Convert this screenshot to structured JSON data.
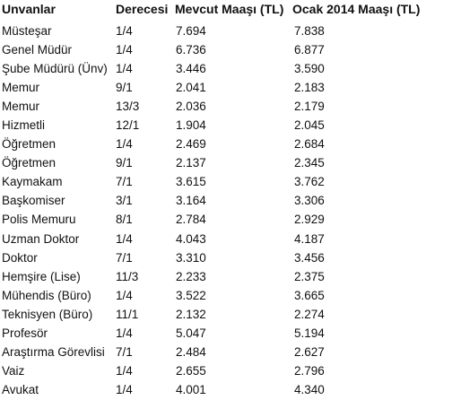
{
  "headers": {
    "title": "Unvanlar",
    "grade": "Derecesi",
    "current": "Mevcut Maaşı (TL)",
    "new": "Ocak 2014 Maaşı (TL)"
  },
  "rows": [
    {
      "title": "Müsteşar",
      "grade": "1/4",
      "current": "7.694",
      "new": "7.838"
    },
    {
      "title": "Genel Müdür",
      "grade": "1/4",
      "current": "6.736",
      "new": "6.877"
    },
    {
      "title": "Şube Müdürü (Ünv)",
      "grade": "1/4",
      "current": "3.446",
      "new": "3.590"
    },
    {
      "title": "Memur",
      "grade": "9/1",
      "current": "2.041",
      "new": "2.183"
    },
    {
      "title": "Memur",
      "grade": "13/3",
      "current": "2.036",
      "new": "2.179"
    },
    {
      "title": "Hizmetli",
      "grade": "12/1",
      "current": "1.904",
      "new": "2.045"
    },
    {
      "title": "Öğretmen",
      "grade": "1/4",
      "current": "2.469",
      "new": "2.684"
    },
    {
      "title": "Öğretmen",
      "grade": "9/1",
      "current": "2.137",
      "new": "2.345"
    },
    {
      "title": "Kaymakam",
      "grade": "7/1",
      "current": "3.615",
      "new": "3.762"
    },
    {
      "title": "Başkomiser",
      "grade": "3/1",
      "current": "3.164",
      "new": "3.306"
    },
    {
      "title": "Polis Memuru",
      "grade": "8/1",
      "current": "2.784",
      "new": "2.929"
    },
    {
      "title": "Uzman Doktor",
      "grade": "1/4",
      "current": "4.043",
      "new": "4.187"
    },
    {
      "title": "Doktor",
      "grade": "7/1",
      "current": "3.310",
      "new": "3.456"
    },
    {
      "title": "Hemşire (Lise)",
      "grade": "11/3",
      "current": "2.233",
      "new": "2.375"
    },
    {
      "title": "Mühendis (Büro)",
      "grade": "1/4",
      "current": "3.522",
      "new": "3.665"
    },
    {
      "title": "Teknisyen (Büro)",
      "grade": "11/1",
      "current": "2.132",
      "new": "2.274"
    },
    {
      "title": "Profesör",
      "grade": "1/4",
      "current": "5.047",
      "new": "5.194"
    },
    {
      "title": "Araştırma Görevlisi",
      "grade": "7/1",
      "current": "2.484",
      "new": "2.627"
    },
    {
      "title": "Vaiz",
      "grade": "1/4",
      "current": "2.655",
      "new": "2.796"
    },
    {
      "title": "Avukat",
      "grade": "1/4",
      "current": "4.001",
      "new": "4.340"
    }
  ]
}
